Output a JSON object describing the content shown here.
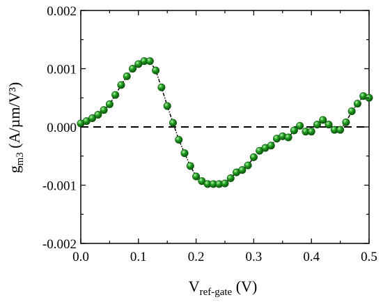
{
  "chart_data": {
    "type": "scatter",
    "xlabel": {
      "main": "V",
      "sub": "ref-gate",
      "unit": " (V)"
    },
    "ylabel": {
      "main": "g",
      "sub": "m3",
      "unit": " (A/µm/V³)"
    },
    "xlim": [
      0.0,
      0.5
    ],
    "ylim": [
      -0.002,
      0.002
    ],
    "x_ticks": [
      "0.0",
      "0.1",
      "0.2",
      "0.3",
      "0.4",
      "0.5"
    ],
    "y_ticks": [
      "-0.002",
      "-0.001",
      "0.000",
      "0.001",
      "0.002"
    ],
    "grid": false,
    "reference_line": {
      "y": 0.0,
      "style": "dashed",
      "color": "#000000"
    },
    "marker_color": "#22a022",
    "line_color": "#000000",
    "series": [
      {
        "x": [
          0.0,
          0.01,
          0.02,
          0.03,
          0.04,
          0.05,
          0.06,
          0.07,
          0.08,
          0.09,
          0.1,
          0.11,
          0.12,
          0.13,
          0.14,
          0.15,
          0.16,
          0.17,
          0.18,
          0.19,
          0.2,
          0.21,
          0.22,
          0.23,
          0.24,
          0.25,
          0.26,
          0.27,
          0.28,
          0.29,
          0.3,
          0.31,
          0.32,
          0.33,
          0.34,
          0.35,
          0.36,
          0.37,
          0.38,
          0.39,
          0.4,
          0.41,
          0.42,
          0.43,
          0.44,
          0.45,
          0.46,
          0.47,
          0.48,
          0.49,
          0.5
        ],
        "y": [
          6e-05,
          0.0001,
          0.00015,
          0.00021,
          0.00029,
          0.00039,
          0.00055,
          0.00072,
          0.00087,
          0.001,
          0.00108,
          0.00113,
          0.00113,
          0.00097,
          0.00068,
          0.00036,
          7e-05,
          -0.00022,
          -0.00045,
          -0.00067,
          -0.00085,
          -0.00093,
          -0.00098,
          -0.00098,
          -0.00098,
          -0.00097,
          -0.00088,
          -0.00078,
          -0.00074,
          -0.00066,
          -0.00052,
          -0.00041,
          -0.00036,
          -0.00032,
          -0.0002,
          -0.00016,
          -0.00018,
          -6e-05,
          2e-05,
          -8e-05,
          -8e-05,
          4e-05,
          0.00012,
          4e-05,
          -5e-05,
          -5e-05,
          8e-05,
          0.00027,
          0.0004,
          0.00053,
          0.0005
        ]
      }
    ]
  }
}
